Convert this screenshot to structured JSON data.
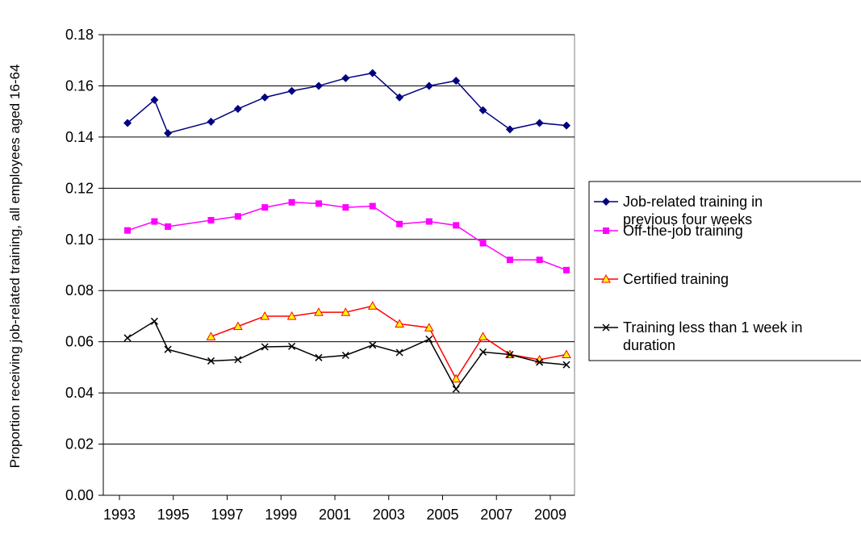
{
  "chart_data": {
    "type": "line",
    "y_label": "Proportion receiving job-related training, all employees aged 16-64",
    "x": [
      1993.3,
      1994.3,
      1994.8,
      1996.4,
      1997.4,
      1998.4,
      1999.4,
      2000.4,
      2001.4,
      2002.4,
      2003.4,
      2004.5,
      2005.5,
      2006.5,
      2007.5,
      2008.6,
      2009.6
    ],
    "xlim": [
      1992.4,
      2009.9
    ],
    "xticks": [
      1993,
      1995,
      1997,
      1999,
      2001,
      2003,
      2005,
      2007,
      2009
    ],
    "ylim": [
      0,
      0.18
    ],
    "yticks": [
      {
        "value": 0,
        "label": "0.00"
      },
      {
        "value": 0.02,
        "label": "0.02"
      },
      {
        "value": 0.04,
        "label": "0.04"
      },
      {
        "value": 0.06,
        "label": "0.06"
      },
      {
        "value": 0.08,
        "label": "0.08"
      },
      {
        "value": 0.1,
        "label": "0.10"
      },
      {
        "value": 0.12,
        "label": "0.12"
      },
      {
        "value": 0.14,
        "label": "0.14"
      },
      {
        "value": 0.16,
        "label": "0.16"
      },
      {
        "value": 0.18,
        "label": "0.18"
      }
    ],
    "grid": true,
    "legend": "right",
    "series": [
      {
        "name": "Job-related training in previous four weeks",
        "color": "#000080",
        "marker": "diamond",
        "values": [
          0.1455,
          0.1545,
          0.1415,
          0.146,
          0.151,
          0.1555,
          0.158,
          0.16,
          0.163,
          0.165,
          0.1555,
          0.16,
          0.162,
          0.1505,
          0.143,
          0.1455,
          0.1445
        ]
      },
      {
        "name": "Off-the-job training",
        "color": "#ff00ff",
        "marker": "square",
        "values": [
          0.1035,
          0.107,
          0.105,
          0.1075,
          0.109,
          0.1125,
          0.1145,
          0.114,
          0.1125,
          0.113,
          0.106,
          0.107,
          0.1055,
          0.0985,
          0.092,
          0.092,
          0.088
        ]
      },
      {
        "name": "Certified training",
        "color": "#ff0000",
        "marker": "triangle",
        "values": [
          null,
          null,
          null,
          0.062,
          0.066,
          0.07,
          0.07,
          0.0715,
          0.0715,
          0.074,
          0.067,
          0.0655,
          0.0455,
          0.062,
          0.055,
          0.053,
          0.055
        ]
      },
      {
        "name": "Training less than 1 week in duration",
        "color": "#000000",
        "marker": "x",
        "values": [
          0.0615,
          0.068,
          0.057,
          0.0525,
          0.053,
          0.058,
          0.0582,
          0.0538,
          0.0547,
          0.0587,
          0.0558,
          0.061,
          0.0415,
          0.056,
          0.055,
          0.052,
          0.051
        ]
      }
    ]
  }
}
